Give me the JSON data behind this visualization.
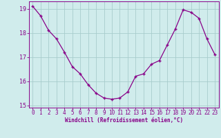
{
  "x": [
    0,
    1,
    2,
    3,
    4,
    5,
    6,
    7,
    8,
    9,
    10,
    11,
    12,
    13,
    14,
    15,
    16,
    17,
    18,
    19,
    20,
    21,
    22,
    23
  ],
  "y": [
    19.1,
    18.7,
    18.1,
    17.75,
    17.2,
    16.6,
    16.3,
    15.85,
    15.5,
    15.3,
    15.25,
    15.3,
    15.55,
    16.2,
    16.3,
    16.7,
    16.85,
    17.5,
    18.15,
    18.95,
    18.85,
    18.6,
    17.75,
    17.1
  ],
  "line_color": "#880088",
  "marker": "+",
  "bg_color": "#d0ecec",
  "grid_color": "#a8cccc",
  "axis_color": "#880088",
  "tick_color": "#880088",
  "xlabel": "Windchill (Refroidissement éolien,°C)",
  "xlim": [
    -0.5,
    23.5
  ],
  "ylim": [
    14.9,
    19.3
  ],
  "yticks": [
    15,
    16,
    17,
    18,
    19
  ],
  "xticks": [
    0,
    1,
    2,
    3,
    4,
    5,
    6,
    7,
    8,
    9,
    10,
    11,
    12,
    13,
    14,
    15,
    16,
    17,
    18,
    19,
    20,
    21,
    22,
    23
  ],
  "xlabel_fontsize": 5.5,
  "tick_fontsize": 5.5,
  "ytick_fontsize": 6.0
}
